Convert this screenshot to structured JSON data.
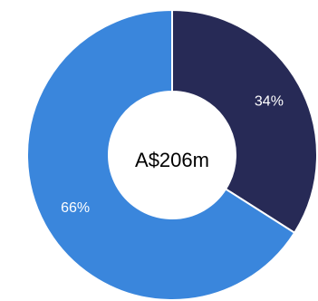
{
  "chart_data": {
    "type": "donut",
    "center_text": "A$206m",
    "values": [
      34,
      66
    ],
    "value_labels": [
      "34%",
      "66%"
    ],
    "colors": [
      "#272a56",
      "#3a86dc"
    ]
  }
}
